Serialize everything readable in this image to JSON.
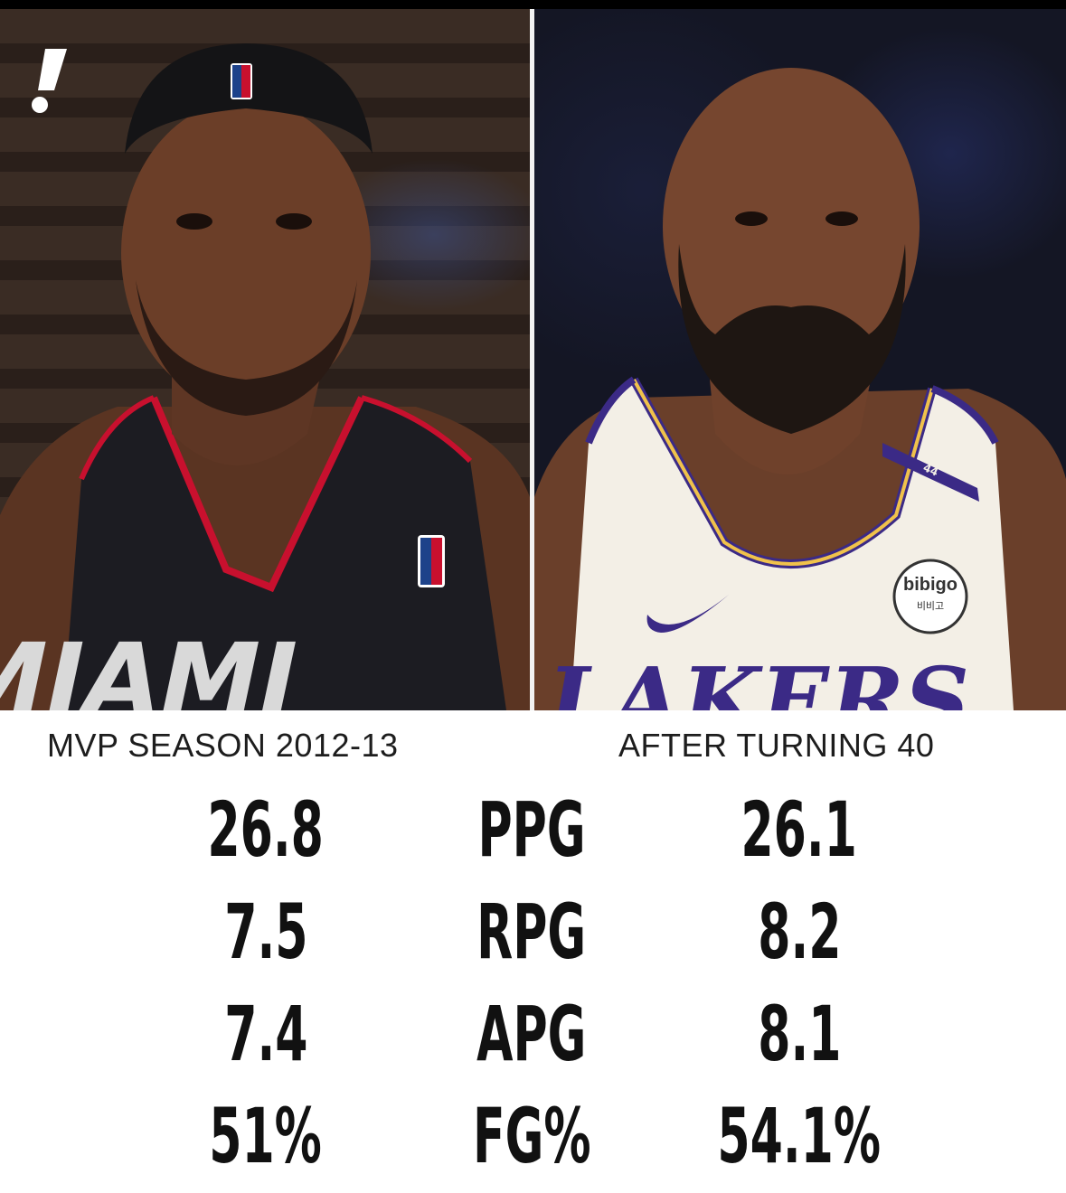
{
  "header": {
    "left_label": "MVP SEASON 2012-13",
    "right_label": "AFTER TURNING 40"
  },
  "photos": {
    "left": {
      "jersey_text": "MIAMI",
      "jersey_color": "#1c1c22",
      "trim_color": "#c8102e"
    },
    "right": {
      "jersey_text": "LAKERS",
      "jersey_color": "#f3efe6",
      "trim_color": "#3b2a86",
      "sponsor": "bibigo",
      "sponsor_sub": "비비고",
      "number": "44"
    }
  },
  "stats": [
    {
      "left": "26.8",
      "label": "PPG",
      "right": "26.1"
    },
    {
      "left": "7.5",
      "label": "RPG",
      "right": "8.2"
    },
    {
      "left": "7.4",
      "label": "APG",
      "right": "8.1"
    },
    {
      "left": "51%",
      "label": "FG%",
      "right": "54.1%"
    }
  ],
  "icons": {
    "brand": "exclamation-logo-icon"
  }
}
